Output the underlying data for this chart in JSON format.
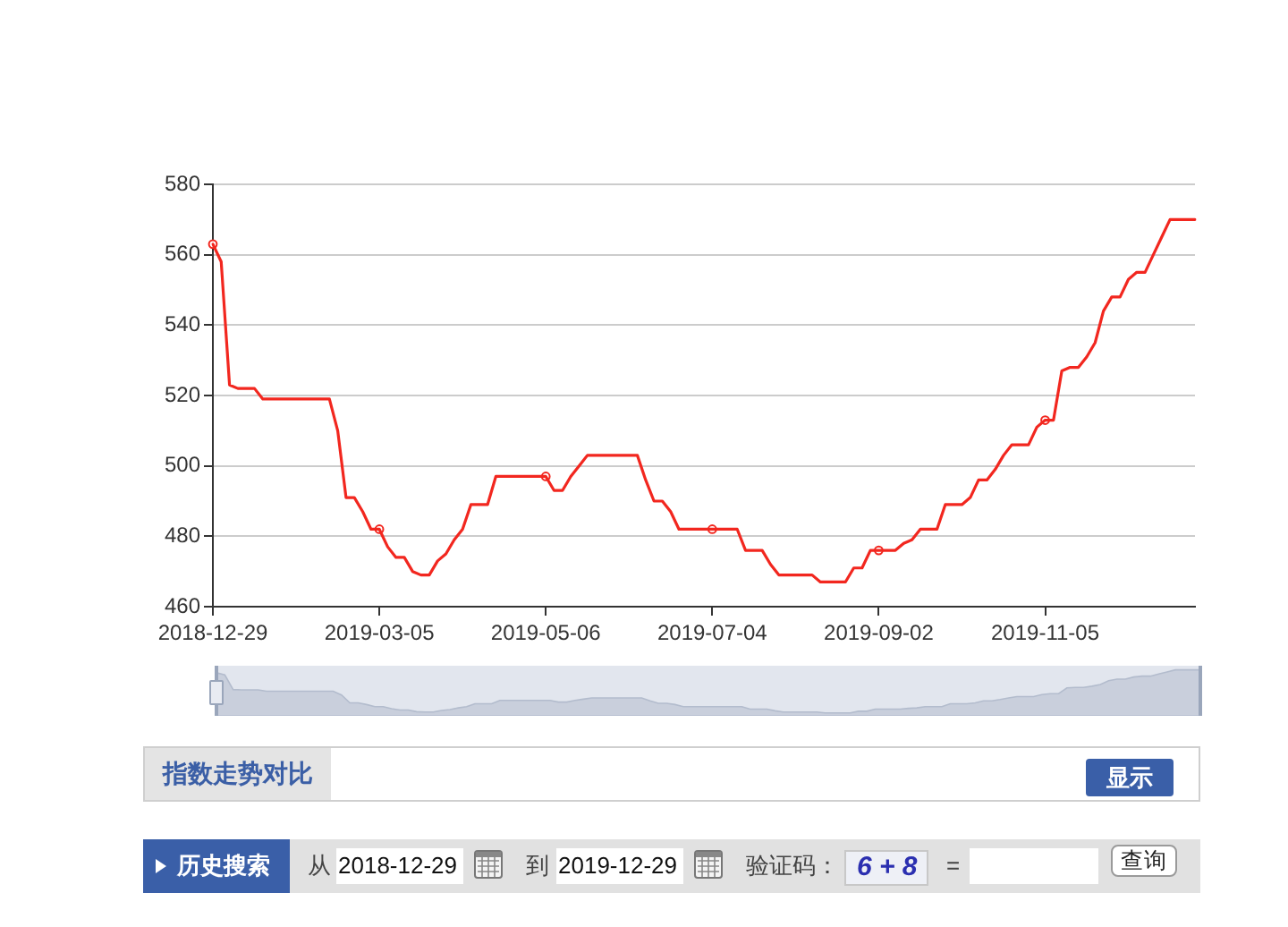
{
  "chart_data": [
    {
      "type": "line",
      "categories": [
        "2018-12-29",
        null,
        null,
        null,
        null,
        null,
        null,
        null,
        null,
        null,
        null,
        null,
        null,
        null,
        null,
        null,
        null,
        null,
        null,
        null,
        "2019-03-05",
        null,
        null,
        null,
        null,
        null,
        null,
        null,
        null,
        null,
        null,
        null,
        null,
        null,
        null,
        null,
        null,
        null,
        null,
        null,
        "2019-05-06",
        null,
        null,
        null,
        null,
        null,
        null,
        null,
        null,
        null,
        null,
        null,
        null,
        null,
        null,
        null,
        null,
        null,
        null,
        null,
        "2019-07-04",
        null,
        null,
        null,
        null,
        null,
        null,
        null,
        null,
        null,
        null,
        null,
        null,
        null,
        null,
        null,
        null,
        null,
        null,
        null,
        "2019-09-02",
        null,
        null,
        null,
        null,
        null,
        null,
        null,
        null,
        null,
        null,
        null,
        null,
        null,
        null,
        null,
        null,
        null,
        null,
        null,
        "2019-11-05",
        null,
        null,
        null,
        null,
        null,
        null,
        null,
        null,
        null,
        null,
        null,
        null,
        null,
        null,
        null,
        null,
        null,
        null
      ],
      "series": [
        {
          "color": "#f2271f",
          "marker": "none",
          "values": [
            563,
            558,
            523,
            522,
            522,
            522,
            519,
            519,
            519,
            519,
            519,
            519,
            519,
            519,
            519,
            510,
            491,
            491,
            487,
            482,
            482,
            477,
            474,
            474,
            470,
            469,
            469,
            473,
            475,
            479,
            482,
            489,
            489,
            489,
            497,
            497,
            497,
            497,
            497,
            497,
            497,
            493,
            493,
            497,
            500,
            503,
            503,
            503,
            503,
            503,
            503,
            503,
            496,
            490,
            490,
            487,
            482,
            482,
            482,
            482,
            482,
            482,
            482,
            482,
            476,
            476,
            476,
            472,
            469,
            469,
            469,
            469,
            469,
            467,
            467,
            467,
            467,
            471,
            471,
            476,
            476,
            476,
            476,
            478,
            479,
            482,
            482,
            482,
            489,
            489,
            489,
            491,
            496,
            496,
            499,
            503,
            506,
            506,
            506,
            511,
            513,
            513,
            527,
            528,
            528,
            531,
            535,
            544,
            548,
            548,
            553,
            555,
            555,
            560,
            565,
            570,
            570,
            570,
            570
          ]
        },
        {
          "type": "scatter",
          "color": "#f2271f",
          "values": [
            563,
            null,
            null,
            null,
            null,
            null,
            null,
            null,
            null,
            null,
            null,
            null,
            null,
            null,
            null,
            null,
            null,
            null,
            null,
            null,
            482,
            null,
            null,
            null,
            null,
            null,
            null,
            null,
            null,
            null,
            null,
            null,
            null,
            null,
            null,
            null,
            null,
            null,
            null,
            null,
            497,
            null,
            null,
            null,
            null,
            null,
            null,
            null,
            null,
            null,
            null,
            null,
            null,
            null,
            null,
            null,
            null,
            null,
            null,
            null,
            482,
            null,
            null,
            null,
            null,
            null,
            null,
            null,
            null,
            null,
            null,
            null,
            null,
            null,
            null,
            null,
            null,
            null,
            null,
            null,
            476,
            null,
            null,
            null,
            null,
            null,
            null,
            null,
            null,
            null,
            null,
            null,
            null,
            null,
            null,
            null,
            null,
            null,
            null,
            null,
            513,
            null,
            null,
            null,
            null,
            null,
            null,
            null,
            null,
            null,
            null,
            null,
            null,
            null,
            null,
            null,
            null,
            null,
            null
          ]
        }
      ],
      "ylim": [
        460,
        580
      ],
      "yticks": [
        460,
        480,
        500,
        520,
        540,
        560,
        580
      ],
      "grid": "y",
      "marker": "circle",
      "line_style": "solid"
    },
    {
      "type": "other",
      "annotations": [
        "指数走势对比",
        "显示",
        "历史搜索",
        "从",
        "2018-12-29",
        "到",
        "2019-12-29",
        "验证码：",
        "6 + 8",
        "=",
        "查询"
      ]
    }
  ]
}
